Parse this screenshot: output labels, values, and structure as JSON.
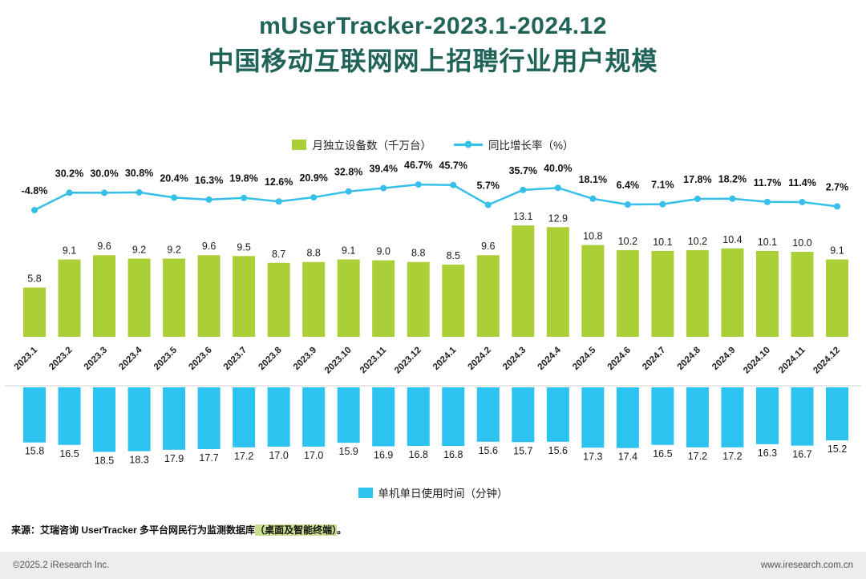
{
  "title": {
    "line1": "mUserTracker-2023.1-2024.12",
    "line2": "中国移动互联网网上招聘行业用户规模"
  },
  "colors": {
    "title": "#206358",
    "bar_green": "#abd037",
    "line_cyan": "#36bfe8",
    "bar_cyan": "#2cc3f0",
    "divider": "#cfcfcf",
    "footer_bg": "#ededed",
    "label_text": "#1a1a1a"
  },
  "chart_data": [
    {
      "type": "bar",
      "subtype": "combo-bar-line",
      "title": "中国移动互联网网上招聘行业用户规模",
      "categories": [
        "2023.1",
        "2023.2",
        "2023.3",
        "2023.4",
        "2023.5",
        "2023.6",
        "2023.7",
        "2023.8",
        "2023.9",
        "2023.10",
        "2023.11",
        "2023.12",
        "2024.1",
        "2024.2",
        "2024.3",
        "2024.4",
        "2024.5",
        "2024.6",
        "2024.7",
        "2024.8",
        "2024.9",
        "2024.10",
        "2024.11",
        "2024.12"
      ],
      "series": [
        {
          "name": "月独立设备数（千万台）",
          "type": "bar",
          "values": [
            5.8,
            9.1,
            9.6,
            9.2,
            9.2,
            9.6,
            9.5,
            8.7,
            8.8,
            9.1,
            9.0,
            8.8,
            8.5,
            9.6,
            13.1,
            12.9,
            10.8,
            10.2,
            10.1,
            10.2,
            10.4,
            10.1,
            10.0,
            9.1
          ]
        },
        {
          "name": "同比增长率（%）",
          "type": "line",
          "unit": "%",
          "values": [
            -4.8,
            30.2,
            30.0,
            30.8,
            20.4,
            16.3,
            19.8,
            12.6,
            20.9,
            32.8,
            39.4,
            46.7,
            45.7,
            5.7,
            35.7,
            40.0,
            18.1,
            6.4,
            7.1,
            17.8,
            18.2,
            11.7,
            11.4,
            2.7
          ]
        }
      ],
      "ylim_bar": [
        0,
        14
      ],
      "ylim_line": [
        -10,
        50
      ],
      "grid": false,
      "legend_position": "top"
    },
    {
      "type": "bar",
      "direction": "down",
      "title": "单机单日使用时间（分钟）",
      "categories": [
        "2023.1",
        "2023.2",
        "2023.3",
        "2023.4",
        "2023.5",
        "2023.6",
        "2023.7",
        "2023.8",
        "2023.9",
        "2023.10",
        "2023.11",
        "2023.12",
        "2024.1",
        "2024.2",
        "2024.3",
        "2024.4",
        "2024.5",
        "2024.6",
        "2024.7",
        "2024.8",
        "2024.9",
        "2024.10",
        "2024.11",
        "2024.12"
      ],
      "values": [
        15.8,
        16.5,
        18.5,
        18.3,
        17.9,
        17.7,
        17.2,
        17.0,
        17.0,
        15.9,
        16.9,
        16.8,
        16.8,
        15.6,
        15.7,
        15.6,
        17.3,
        17.4,
        16.5,
        17.2,
        17.2,
        16.3,
        16.7,
        15.2
      ],
      "ylim": [
        0,
        20
      ],
      "grid": false,
      "legend_position": "bottom"
    }
  ],
  "source": {
    "prefix": "来源：艾瑞咨询 UserTracker 多平台网民行为监测数据库",
    "highlight": "（桌面及智能终端）",
    "suffix": "。"
  },
  "footer": {
    "copyright": "©2025.2 iResearch Inc.",
    "website": "www.iresearch.com.cn"
  }
}
